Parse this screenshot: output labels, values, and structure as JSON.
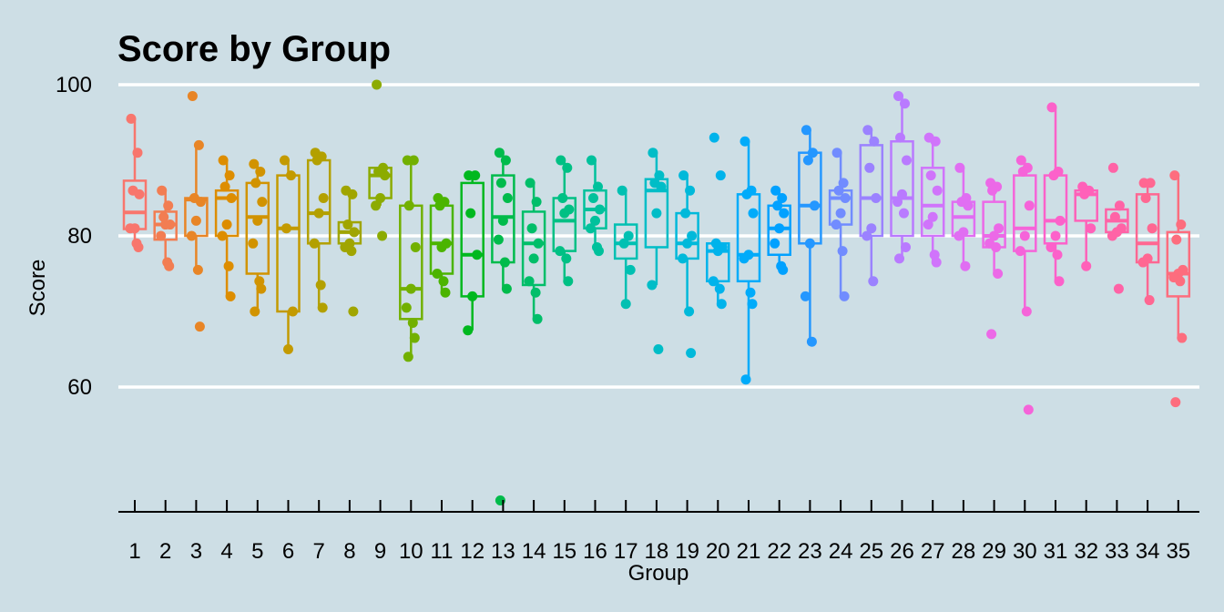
{
  "chart_data": {
    "type": "boxplot",
    "title": "Score by Group",
    "xlabel": "Group",
    "ylabel": "Score",
    "ylim": [
      44,
      104
    ],
    "yticks": [
      60,
      80,
      100
    ],
    "grid": "horizontal major lines",
    "legend": "none",
    "background": "#cddee5",
    "gridline_color": "#ffffff",
    "categories": [
      "1",
      "2",
      "3",
      "4",
      "5",
      "6",
      "7",
      "8",
      "9",
      "10",
      "11",
      "12",
      "13",
      "14",
      "15",
      "16",
      "17",
      "18",
      "19",
      "20",
      "21",
      "22",
      "23",
      "24",
      "25",
      "26",
      "27",
      "28",
      "29",
      "30",
      "31",
      "32",
      "33",
      "34",
      "35"
    ],
    "colors": [
      "#f8766d",
      "#f27d52",
      "#e88526",
      "#dd8d00",
      "#d19300",
      "#c39a00",
      "#b3a000",
      "#a0a500",
      "#8cab00",
      "#72b000",
      "#4bb400",
      "#00b81f",
      "#00bb4b",
      "#00be69",
      "#00c084",
      "#00c19c",
      "#00c0b2",
      "#00bdc7",
      "#00b9da",
      "#00b3eb",
      "#00abfa",
      "#00a1ff",
      "#2497ff",
      "#718cff",
      "#9b82ff",
      "#b97aff",
      "#d074fb",
      "#e06ef2",
      "#ec69e7",
      "#f564d9",
      "#fc61ca",
      "#ff61b9",
      "#ff63a6",
      "#ff6792",
      "#fd6d7e"
    ],
    "boxes": [
      {
        "group": "1",
        "q1": 80.9,
        "median": 83.1,
        "q3": 87.3,
        "lower": 78.5,
        "upper": 95.5
      },
      {
        "group": "2",
        "q1": 79.5,
        "median": 81.5,
        "q3": 83.2,
        "lower": 76.0,
        "upper": 86.0
      },
      {
        "group": "3",
        "q1": 80.0,
        "median": 84.8,
        "q3": 85.0,
        "lower": 75.5,
        "upper": 92.0
      },
      {
        "group": "4",
        "q1": 80.0,
        "median": 85.0,
        "q3": 86.0,
        "lower": 72.0,
        "upper": 90.0
      },
      {
        "group": "5",
        "q1": 75.0,
        "median": 82.5,
        "q3": 87.0,
        "lower": 70.0,
        "upper": 89.5
      },
      {
        "group": "6",
        "q1": 70.0,
        "median": 81.0,
        "q3": 88.0,
        "lower": 65.0,
        "upper": 90.0
      },
      {
        "group": "7",
        "q1": 79.0,
        "median": 83.0,
        "q3": 90.0,
        "lower": 70.5,
        "upper": 91.0
      },
      {
        "group": "8",
        "q1": 79.0,
        "median": 80.5,
        "q3": 81.8,
        "lower": 78.0,
        "upper": 86.0
      },
      {
        "group": "9",
        "q1": 85.0,
        "median": 88.0,
        "q3": 89.0,
        "lower": 84.0,
        "upper": 89.0
      },
      {
        "group": "10",
        "q1": 69.0,
        "median": 73.0,
        "q3": 84.0,
        "lower": 64.0,
        "upper": 90.0
      },
      {
        "group": "11",
        "q1": 75.0,
        "median": 79.0,
        "q3": 84.0,
        "lower": 72.5,
        "upper": 85.0
      },
      {
        "group": "12",
        "q1": 72.0,
        "median": 77.5,
        "q3": 87.0,
        "lower": 67.5,
        "upper": 88.0
      },
      {
        "group": "13",
        "q1": 76.5,
        "median": 82.5,
        "q3": 88.0,
        "lower": 73.0,
        "upper": 91.0
      },
      {
        "group": "14",
        "q1": 73.5,
        "median": 79.0,
        "q3": 83.2,
        "lower": 69.0,
        "upper": 87.0
      },
      {
        "group": "15",
        "q1": 78.0,
        "median": 82.0,
        "q3": 85.0,
        "lower": 74.0,
        "upper": 90.0
      },
      {
        "group": "16",
        "q1": 81.0,
        "median": 83.5,
        "q3": 86.0,
        "lower": 78.0,
        "upper": 90.0
      },
      {
        "group": "17",
        "q1": 77.0,
        "median": 79.0,
        "q3": 81.5,
        "lower": 71.0,
        "upper": 86.0
      },
      {
        "group": "18",
        "q1": 78.5,
        "median": 86.0,
        "q3": 87.5,
        "lower": 73.5,
        "upper": 91.0
      },
      {
        "group": "19",
        "q1": 77.0,
        "median": 79.0,
        "q3": 83.0,
        "lower": 69.5,
        "upper": 88.0
      },
      {
        "group": "20",
        "q1": 74.0,
        "median": 78.0,
        "q3": 79.0,
        "lower": 71.0,
        "upper": 79.0
      },
      {
        "group": "21",
        "q1": 74.0,
        "median": 77.5,
        "q3": 85.5,
        "lower": 61.0,
        "upper": 92.5
      },
      {
        "group": "22",
        "q1": 77.5,
        "median": 81.0,
        "q3": 84.0,
        "lower": 75.5,
        "upper": 86.0
      },
      {
        "group": "23",
        "q1": 79.0,
        "median": 84.0,
        "q3": 91.0,
        "lower": 66.0,
        "upper": 94.0
      },
      {
        "group": "24",
        "q1": 81.5,
        "median": 85.0,
        "q3": 86.0,
        "lower": 72.0,
        "upper": 91.0
      },
      {
        "group": "25",
        "q1": 80.0,
        "median": 85.0,
        "q3": 92.0,
        "lower": 74.0,
        "upper": 94.0
      },
      {
        "group": "26",
        "q1": 80.0,
        "median": 85.0,
        "q3": 92.5,
        "lower": 77.0,
        "upper": 98.5
      },
      {
        "group": "27",
        "q1": 80.0,
        "median": 84.0,
        "q3": 89.0,
        "lower": 76.5,
        "upper": 93.0
      },
      {
        "group": "28",
        "q1": 80.0,
        "median": 82.5,
        "q3": 84.5,
        "lower": 76.0,
        "upper": 89.0
      },
      {
        "group": "29",
        "q1": 78.5,
        "median": 80.0,
        "q3": 84.5,
        "lower": 75.0,
        "upper": 87.0
      },
      {
        "group": "30",
        "q1": 78.0,
        "median": 81.0,
        "q3": 88.0,
        "lower": 70.0,
        "upper": 90.0
      },
      {
        "group": "31",
        "q1": 79.0,
        "median": 82.0,
        "q3": 88.0,
        "lower": 74.0,
        "upper": 97.0
      },
      {
        "group": "32",
        "q1": 82.0,
        "median": 85.5,
        "q3": 86.0,
        "lower": 76.0,
        "upper": 86.0
      },
      {
        "group": "33",
        "q1": 80.5,
        "median": 82.0,
        "q3": 83.5,
        "lower": 80.0,
        "upper": 84.0
      },
      {
        "group": "34",
        "q1": 76.5,
        "median": 79.0,
        "q3": 85.5,
        "lower": 71.5,
        "upper": 87.0
      },
      {
        "group": "35",
        "q1": 72.0,
        "median": 75.0,
        "q3": 80.5,
        "lower": 66.5,
        "upper": 88.0
      }
    ],
    "points": [
      {
        "group": "1",
        "values": [
          95.5,
          91.0,
          86.0,
          85.5,
          81.0,
          81.0,
          79.0,
          78.5
        ]
      },
      {
        "group": "2",
        "values": [
          86.0,
          84.0,
          82.5,
          81.5,
          81.5,
          80.0,
          76.5,
          76.0
        ]
      },
      {
        "group": "3",
        "values": [
          98.5,
          92.0,
          85.0,
          84.5,
          82.0,
          80.0,
          75.5,
          68.0
        ]
      },
      {
        "group": "4",
        "values": [
          90.0,
          88.0,
          86.5,
          85.0,
          81.5,
          80.0,
          76.0,
          72.0
        ]
      },
      {
        "group": "5",
        "values": [
          89.5,
          88.5,
          87.0,
          84.5,
          82.0,
          79.0,
          74.0,
          73.0,
          70.0
        ]
      },
      {
        "group": "6",
        "values": [
          90.0,
          88.0,
          81.0,
          70.0,
          65.0
        ]
      },
      {
        "group": "7",
        "values": [
          91.0,
          90.5,
          90.0,
          85.0,
          83.0,
          79.0,
          73.5,
          70.5
        ]
      },
      {
        "group": "8",
        "values": [
          86.0,
          85.5,
          81.5,
          80.5,
          79.0,
          78.5,
          78.0,
          70.0
        ]
      },
      {
        "group": "9",
        "values": [
          100.0,
          89.0,
          88.5,
          88.0,
          85.0,
          84.0,
          80.0
        ]
      },
      {
        "group": "10",
        "values": [
          90.0,
          90.0,
          84.0,
          78.5,
          73.0,
          70.5,
          68.5,
          66.5,
          64.0
        ]
      },
      {
        "group": "11",
        "values": [
          85.0,
          84.5,
          84.0,
          79.0,
          78.5,
          75.0,
          74.0,
          72.5
        ]
      },
      {
        "group": "12",
        "values": [
          88.0,
          88.0,
          83.0,
          77.5,
          72.0,
          67.5
        ]
      },
      {
        "group": "13",
        "values": [
          91.0,
          90.0,
          87.0,
          85.0,
          82.0,
          79.5,
          76.5,
          73.0,
          45.0
        ]
      },
      {
        "group": "14",
        "values": [
          87.0,
          84.5,
          81.0,
          79.0,
          77.0,
          74.0,
          72.5,
          69.0
        ]
      },
      {
        "group": "15",
        "values": [
          90.0,
          89.0,
          85.0,
          83.5,
          83.0,
          78.0,
          77.0,
          74.0
        ]
      },
      {
        "group": "16",
        "values": [
          90.0,
          86.5,
          85.0,
          83.5,
          82.0,
          81.0,
          78.5,
          78.0
        ]
      },
      {
        "group": "17",
        "values": [
          86.0,
          80.0,
          79.0,
          75.5,
          71.0
        ]
      },
      {
        "group": "18",
        "values": [
          91.0,
          88.0,
          87.0,
          86.5,
          83.0,
          73.5,
          65.0
        ]
      },
      {
        "group": "19",
        "values": [
          88.0,
          86.0,
          83.0,
          80.0,
          79.0,
          77.0,
          70.0,
          64.5
        ]
      },
      {
        "group": "20",
        "values": [
          93.0,
          88.0,
          79.0,
          78.5,
          78.0,
          74.0,
          73.0,
          71.0
        ]
      },
      {
        "group": "21",
        "values": [
          92.5,
          86.0,
          85.5,
          83.0,
          77.5,
          77.0,
          72.5,
          71.0,
          61.0
        ]
      },
      {
        "group": "22",
        "values": [
          86.0,
          85.0,
          84.0,
          83.0,
          81.0,
          79.0,
          76.0,
          75.5
        ]
      },
      {
        "group": "23",
        "values": [
          94.0,
          91.0,
          90.0,
          84.0,
          79.0,
          72.0,
          66.0
        ]
      },
      {
        "group": "24",
        "values": [
          91.0,
          87.0,
          86.0,
          85.0,
          83.0,
          81.5,
          78.0,
          72.0
        ]
      },
      {
        "group": "25",
        "values": [
          94.0,
          92.5,
          89.0,
          85.0,
          81.0,
          80.0,
          74.0
        ]
      },
      {
        "group": "26",
        "values": [
          98.5,
          97.5,
          93.0,
          90.0,
          85.5,
          84.5,
          83.0,
          78.5,
          77.0
        ]
      },
      {
        "group": "27",
        "values": [
          93.0,
          92.5,
          88.0,
          86.0,
          82.5,
          81.5,
          77.5,
          76.5
        ]
      },
      {
        "group": "28",
        "values": [
          89.0,
          85.0,
          84.5,
          84.0,
          80.5,
          80.0,
          76.0
        ]
      },
      {
        "group": "29",
        "values": [
          87.0,
          86.5,
          86.0,
          81.0,
          80.0,
          79.0,
          78.5,
          75.0,
          67.0
        ]
      },
      {
        "group": "30",
        "values": [
          90.0,
          89.0,
          88.5,
          84.0,
          80.0,
          78.0,
          70.0,
          57.0
        ]
      },
      {
        "group": "31",
        "values": [
          97.0,
          88.5,
          88.0,
          82.0,
          80.0,
          78.5,
          77.5,
          74.0
        ]
      },
      {
        "group": "32",
        "values": [
          86.5,
          86.0,
          85.5,
          81.0,
          76.0
        ]
      },
      {
        "group": "33",
        "values": [
          89.0,
          84.0,
          82.5,
          81.0,
          80.5,
          80.0,
          73.0
        ]
      },
      {
        "group": "34",
        "values": [
          87.0,
          87.0,
          85.0,
          81.0,
          77.0,
          76.5,
          71.5
        ]
      },
      {
        "group": "35",
        "values": [
          88.0,
          81.5,
          79.5,
          75.5,
          75.0,
          74.5,
          74.0,
          66.5,
          58.0
        ]
      }
    ]
  }
}
